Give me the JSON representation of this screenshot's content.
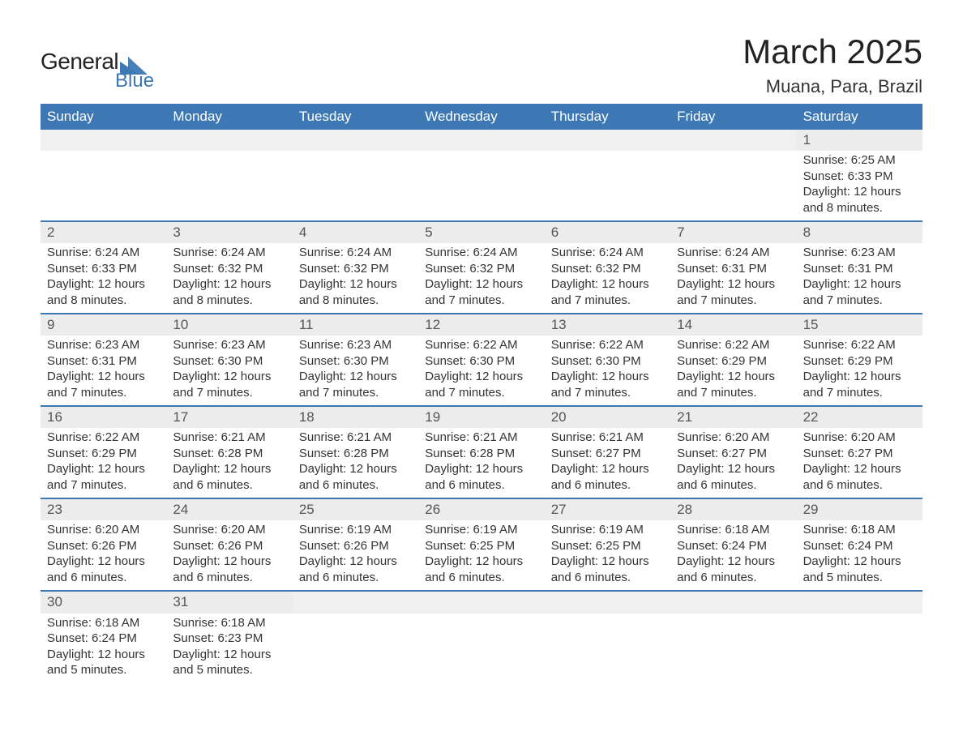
{
  "brand": {
    "text_top": "General",
    "text_bottom": "Blue",
    "accent_color": "#3d78b5",
    "text_color": "#222222"
  },
  "title": {
    "month_year": "March 2025",
    "location": "Muana, Para, Brazil",
    "title_fontsize": 42,
    "location_fontsize": 22
  },
  "styling": {
    "header_bg": "#3d78b5",
    "header_text": "#ffffff",
    "daynum_bg": "#ececec",
    "week_divider": "#3d78b5",
    "body_text": "#333333",
    "page_bg": "#ffffff",
    "cell_fontsize": 15
  },
  "day_names": [
    "Sunday",
    "Monday",
    "Tuesday",
    "Wednesday",
    "Thursday",
    "Friday",
    "Saturday"
  ],
  "weeks": [
    [
      {
        "day": null
      },
      {
        "day": null
      },
      {
        "day": null
      },
      {
        "day": null
      },
      {
        "day": null
      },
      {
        "day": null
      },
      {
        "day": 1,
        "sunrise": "Sunrise: 6:25 AM",
        "sunset": "Sunset: 6:33 PM",
        "daylight": "Daylight: 12 hours and 8 minutes."
      }
    ],
    [
      {
        "day": 2,
        "sunrise": "Sunrise: 6:24 AM",
        "sunset": "Sunset: 6:33 PM",
        "daylight": "Daylight: 12 hours and 8 minutes."
      },
      {
        "day": 3,
        "sunrise": "Sunrise: 6:24 AM",
        "sunset": "Sunset: 6:32 PM",
        "daylight": "Daylight: 12 hours and 8 minutes."
      },
      {
        "day": 4,
        "sunrise": "Sunrise: 6:24 AM",
        "sunset": "Sunset: 6:32 PM",
        "daylight": "Daylight: 12 hours and 8 minutes."
      },
      {
        "day": 5,
        "sunrise": "Sunrise: 6:24 AM",
        "sunset": "Sunset: 6:32 PM",
        "daylight": "Daylight: 12 hours and 7 minutes."
      },
      {
        "day": 6,
        "sunrise": "Sunrise: 6:24 AM",
        "sunset": "Sunset: 6:32 PM",
        "daylight": "Daylight: 12 hours and 7 minutes."
      },
      {
        "day": 7,
        "sunrise": "Sunrise: 6:24 AM",
        "sunset": "Sunset: 6:31 PM",
        "daylight": "Daylight: 12 hours and 7 minutes."
      },
      {
        "day": 8,
        "sunrise": "Sunrise: 6:23 AM",
        "sunset": "Sunset: 6:31 PM",
        "daylight": "Daylight: 12 hours and 7 minutes."
      }
    ],
    [
      {
        "day": 9,
        "sunrise": "Sunrise: 6:23 AM",
        "sunset": "Sunset: 6:31 PM",
        "daylight": "Daylight: 12 hours and 7 minutes."
      },
      {
        "day": 10,
        "sunrise": "Sunrise: 6:23 AM",
        "sunset": "Sunset: 6:30 PM",
        "daylight": "Daylight: 12 hours and 7 minutes."
      },
      {
        "day": 11,
        "sunrise": "Sunrise: 6:23 AM",
        "sunset": "Sunset: 6:30 PM",
        "daylight": "Daylight: 12 hours and 7 minutes."
      },
      {
        "day": 12,
        "sunrise": "Sunrise: 6:22 AM",
        "sunset": "Sunset: 6:30 PM",
        "daylight": "Daylight: 12 hours and 7 minutes."
      },
      {
        "day": 13,
        "sunrise": "Sunrise: 6:22 AM",
        "sunset": "Sunset: 6:30 PM",
        "daylight": "Daylight: 12 hours and 7 minutes."
      },
      {
        "day": 14,
        "sunrise": "Sunrise: 6:22 AM",
        "sunset": "Sunset: 6:29 PM",
        "daylight": "Daylight: 12 hours and 7 minutes."
      },
      {
        "day": 15,
        "sunrise": "Sunrise: 6:22 AM",
        "sunset": "Sunset: 6:29 PM",
        "daylight": "Daylight: 12 hours and 7 minutes."
      }
    ],
    [
      {
        "day": 16,
        "sunrise": "Sunrise: 6:22 AM",
        "sunset": "Sunset: 6:29 PM",
        "daylight": "Daylight: 12 hours and 7 minutes."
      },
      {
        "day": 17,
        "sunrise": "Sunrise: 6:21 AM",
        "sunset": "Sunset: 6:28 PM",
        "daylight": "Daylight: 12 hours and 6 minutes."
      },
      {
        "day": 18,
        "sunrise": "Sunrise: 6:21 AM",
        "sunset": "Sunset: 6:28 PM",
        "daylight": "Daylight: 12 hours and 6 minutes."
      },
      {
        "day": 19,
        "sunrise": "Sunrise: 6:21 AM",
        "sunset": "Sunset: 6:28 PM",
        "daylight": "Daylight: 12 hours and 6 minutes."
      },
      {
        "day": 20,
        "sunrise": "Sunrise: 6:21 AM",
        "sunset": "Sunset: 6:27 PM",
        "daylight": "Daylight: 12 hours and 6 minutes."
      },
      {
        "day": 21,
        "sunrise": "Sunrise: 6:20 AM",
        "sunset": "Sunset: 6:27 PM",
        "daylight": "Daylight: 12 hours and 6 minutes."
      },
      {
        "day": 22,
        "sunrise": "Sunrise: 6:20 AM",
        "sunset": "Sunset: 6:27 PM",
        "daylight": "Daylight: 12 hours and 6 minutes."
      }
    ],
    [
      {
        "day": 23,
        "sunrise": "Sunrise: 6:20 AM",
        "sunset": "Sunset: 6:26 PM",
        "daylight": "Daylight: 12 hours and 6 minutes."
      },
      {
        "day": 24,
        "sunrise": "Sunrise: 6:20 AM",
        "sunset": "Sunset: 6:26 PM",
        "daylight": "Daylight: 12 hours and 6 minutes."
      },
      {
        "day": 25,
        "sunrise": "Sunrise: 6:19 AM",
        "sunset": "Sunset: 6:26 PM",
        "daylight": "Daylight: 12 hours and 6 minutes."
      },
      {
        "day": 26,
        "sunrise": "Sunrise: 6:19 AM",
        "sunset": "Sunset: 6:25 PM",
        "daylight": "Daylight: 12 hours and 6 minutes."
      },
      {
        "day": 27,
        "sunrise": "Sunrise: 6:19 AM",
        "sunset": "Sunset: 6:25 PM",
        "daylight": "Daylight: 12 hours and 6 minutes."
      },
      {
        "day": 28,
        "sunrise": "Sunrise: 6:18 AM",
        "sunset": "Sunset: 6:24 PM",
        "daylight": "Daylight: 12 hours and 6 minutes."
      },
      {
        "day": 29,
        "sunrise": "Sunrise: 6:18 AM",
        "sunset": "Sunset: 6:24 PM",
        "daylight": "Daylight: 12 hours and 5 minutes."
      }
    ],
    [
      {
        "day": 30,
        "sunrise": "Sunrise: 6:18 AM",
        "sunset": "Sunset: 6:24 PM",
        "daylight": "Daylight: 12 hours and 5 minutes."
      },
      {
        "day": 31,
        "sunrise": "Sunrise: 6:18 AM",
        "sunset": "Sunset: 6:23 PM",
        "daylight": "Daylight: 12 hours and 5 minutes."
      },
      {
        "day": null
      },
      {
        "day": null
      },
      {
        "day": null
      },
      {
        "day": null
      },
      {
        "day": null
      }
    ]
  ]
}
